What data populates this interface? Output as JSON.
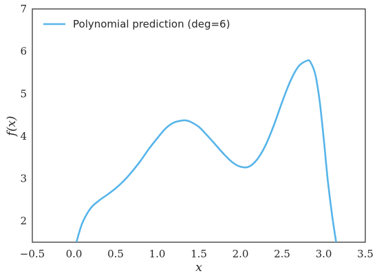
{
  "chart_data": {
    "type": "line",
    "xlabel": "x",
    "ylabel": "f(x)",
    "xlim": [
      -0.5,
      3.5
    ],
    "ylim": [
      1.5,
      7
    ],
    "xticks": [
      -0.5,
      0.0,
      0.5,
      1.0,
      1.5,
      2.0,
      2.5,
      3.0,
      3.5
    ],
    "xtick_labels": [
      "−0.5",
      "0.0",
      "0.5",
      "1.0",
      "1.5",
      "2.0",
      "2.5",
      "3.0",
      "3.5"
    ],
    "yticks": [
      2,
      3,
      4,
      5,
      6,
      7
    ],
    "ytick_labels": [
      "2",
      "3",
      "4",
      "5",
      "6",
      "7"
    ],
    "grid": false,
    "legend_position": "top-left",
    "series": [
      {
        "name": "Polynomial prediction (deg=6)",
        "color": "#56b4e9",
        "x": [
          0.03,
          0.1,
          0.2,
          0.3,
          0.4,
          0.5,
          0.6,
          0.7,
          0.8,
          0.9,
          1.0,
          1.1,
          1.2,
          1.3,
          1.35,
          1.4,
          1.5,
          1.6,
          1.7,
          1.8,
          1.9,
          2.0,
          2.1,
          2.2,
          2.3,
          2.4,
          2.5,
          2.6,
          2.7,
          2.8,
          2.84,
          2.9,
          2.95,
          3.0,
          3.05,
          3.1,
          3.15
        ],
        "y": [
          1.5,
          1.95,
          2.3,
          2.48,
          2.62,
          2.77,
          2.95,
          3.17,
          3.42,
          3.7,
          3.95,
          4.18,
          4.32,
          4.37,
          4.37,
          4.34,
          4.22,
          4.02,
          3.8,
          3.58,
          3.39,
          3.28,
          3.28,
          3.45,
          3.78,
          4.25,
          4.8,
          5.3,
          5.65,
          5.78,
          5.75,
          5.45,
          4.85,
          3.95,
          2.95,
          2.15,
          1.5
        ]
      }
    ]
  }
}
